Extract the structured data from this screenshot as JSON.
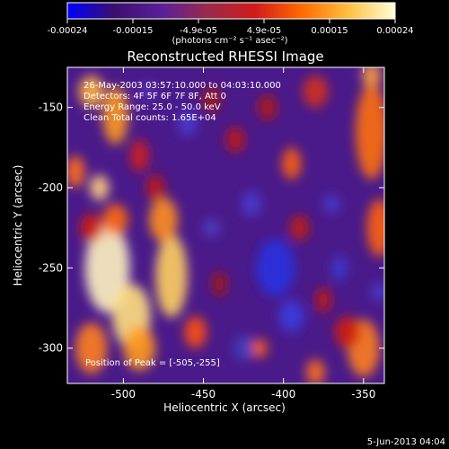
{
  "colorbar": {
    "ticks": [
      "-0.00024",
      "-0.00015",
      "-4.9e-05",
      "4.9e-05",
      "0.00015",
      "0.00024"
    ],
    "units": "(photons cm⁻² s⁻¹ asec⁻²)",
    "stops": [
      "#0000ff",
      "#3b0f6e",
      "#5a1f9a",
      "#9a2a4a",
      "#d01a1a",
      "#ff6a00",
      "#ffc040",
      "#ffffd8"
    ]
  },
  "header": {
    "title": "Reconstructed RHESSI Image",
    "info_lines": [
      "26-May-2003 03:57:10.000 to 04:03:10.000",
      "Detectors: 4F 5F 6F 7F 8F, Att 0",
      "Energy Range: 25.0 - 50.0 keV",
      "Clean     Total counts: 1.65E+04"
    ],
    "peak": "Position of Peak = [-505,-255]",
    "footer_date": "5-Jun-2013 04:04"
  },
  "chart_data": {
    "type": "heatmap",
    "title": "Reconstructed RHESSI Image",
    "xlabel": "Heliocentric X (arcsec)",
    "ylabel": "Heliocentric Y (arcsec)",
    "xlim": [
      -535,
      -337
    ],
    "ylim": [
      -322,
      -125
    ],
    "xticks": [
      -500,
      -450,
      -400,
      -350
    ],
    "yticks": [
      -150,
      -200,
      -250,
      -300
    ],
    "colorbar_range": [
      -0.00024,
      0.00024
    ],
    "peak_position": [
      -505,
      -255
    ]
  }
}
